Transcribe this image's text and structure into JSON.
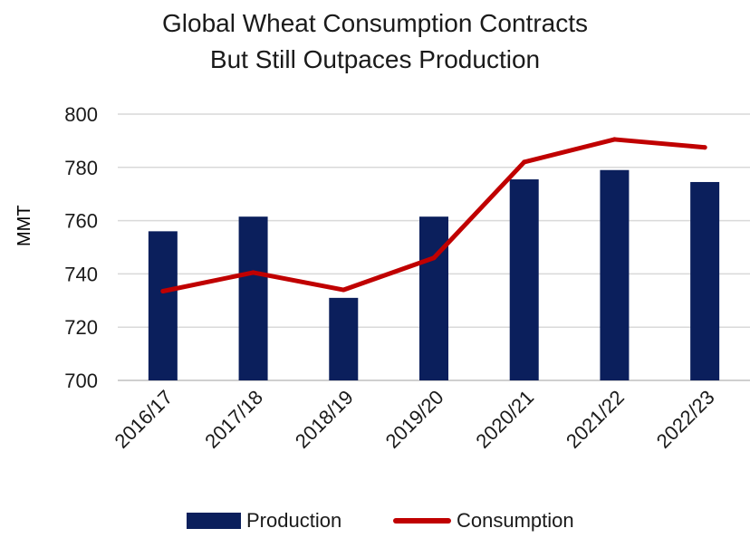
{
  "chart_data": {
    "type": "bar",
    "title_lines": [
      "Global Wheat Consumption Contracts",
      "But Still Outpaces Production"
    ],
    "ylabel": "MMT",
    "xlabel": "",
    "ylim": [
      700,
      800
    ],
    "yticks": [
      700,
      720,
      740,
      760,
      780,
      800
    ],
    "grid": true,
    "legend_position": "bottom",
    "categories": [
      "2016/17",
      "2017/18",
      "2018/19",
      "2019/20",
      "2020/21",
      "2021/22",
      "2022/23"
    ],
    "series": [
      {
        "name": "Production",
        "type": "bar",
        "color": "#0b1f5c",
        "values": [
          756,
          761.5,
          731,
          761.5,
          775.5,
          779,
          774.5
        ]
      },
      {
        "name": "Consumption",
        "type": "line",
        "color": "#c00000",
        "values": [
          733.5,
          740.5,
          734,
          746,
          782,
          790.5,
          787.5
        ]
      }
    ]
  }
}
